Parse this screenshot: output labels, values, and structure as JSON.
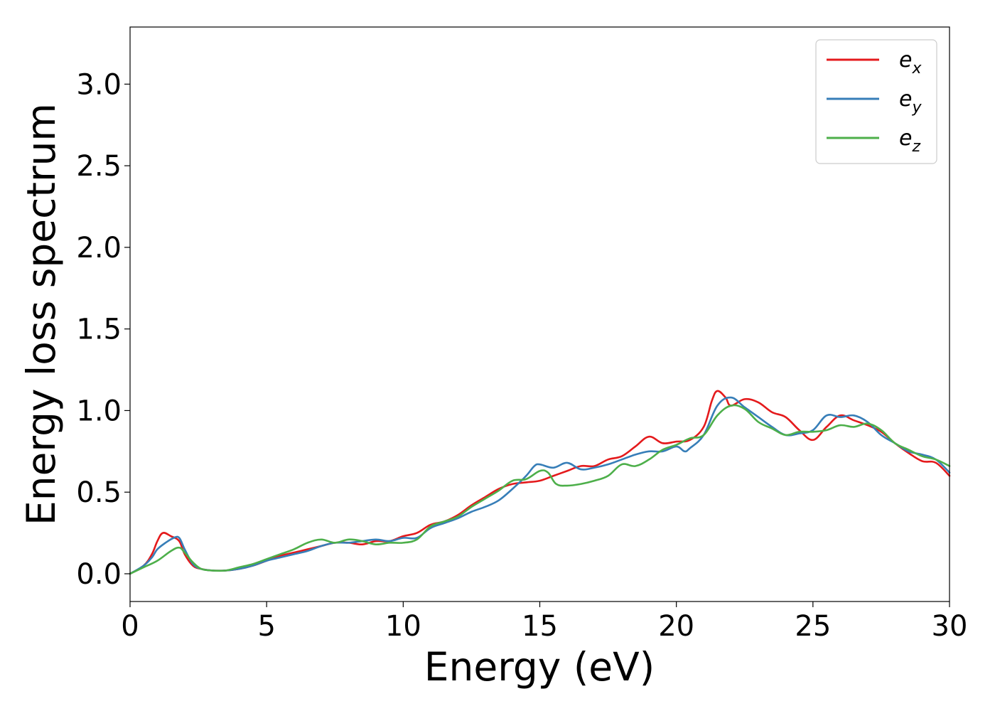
{
  "chart_data": {
    "type": "line",
    "xlabel": "Energy (eV)",
    "ylabel": "Energy loss spectrum",
    "xlim": [
      0,
      30
    ],
    "ylim": [
      -0.17,
      3.35
    ],
    "x_ticks": [
      0,
      5,
      10,
      15,
      20,
      25,
      30
    ],
    "x_tick_labels": [
      "0",
      "5",
      "10",
      "15",
      "20",
      "25",
      "30"
    ],
    "y_ticks": [
      0.0,
      0.5,
      1.0,
      1.5,
      2.0,
      2.5,
      3.0
    ],
    "y_tick_labels": [
      "0.0",
      "0.5",
      "1.0",
      "1.5",
      "2.0",
      "2.5",
      "3.0"
    ],
    "grid": false,
    "legend": "top-right",
    "series": [
      {
        "name": "e",
        "subscript": "x",
        "color": "#e41a1c",
        "x": [
          0,
          0.5,
          0.8,
          1.0,
          1.2,
          1.5,
          1.8,
          2.0,
          2.3,
          2.6,
          3.0,
          3.5,
          4.0,
          4.5,
          5.0,
          5.5,
          6.0,
          6.5,
          7.0,
          7.5,
          8.0,
          8.5,
          9.0,
          9.5,
          10.0,
          10.5,
          11.0,
          11.5,
          12.0,
          12.5,
          13.0,
          13.5,
          14.0,
          14.5,
          15.0,
          15.5,
          16.0,
          16.5,
          17.0,
          17.5,
          18.0,
          18.5,
          19.0,
          19.5,
          20.0,
          20.5,
          21.0,
          21.3,
          21.5,
          21.8,
          22.0,
          22.5,
          23.0,
          23.5,
          24.0,
          24.5,
          25.0,
          25.5,
          26.0,
          26.5,
          27.0,
          27.5,
          28.0,
          28.5,
          29.0,
          29.5,
          30.0
        ],
        "y": [
          0.0,
          0.05,
          0.12,
          0.2,
          0.25,
          0.23,
          0.2,
          0.12,
          0.05,
          0.03,
          0.02,
          0.02,
          0.03,
          0.05,
          0.08,
          0.11,
          0.13,
          0.15,
          0.17,
          0.19,
          0.19,
          0.18,
          0.2,
          0.2,
          0.23,
          0.25,
          0.3,
          0.32,
          0.36,
          0.42,
          0.47,
          0.52,
          0.55,
          0.56,
          0.57,
          0.6,
          0.63,
          0.66,
          0.66,
          0.7,
          0.72,
          0.78,
          0.84,
          0.8,
          0.81,
          0.82,
          0.9,
          1.06,
          1.12,
          1.08,
          1.03,
          1.07,
          1.05,
          0.99,
          0.96,
          0.88,
          0.82,
          0.9,
          0.97,
          0.94,
          0.91,
          0.87,
          0.8,
          0.74,
          0.69,
          0.68,
          0.6
        ]
      },
      {
        "name": "e",
        "subscript": "y",
        "color": "#377eb8",
        "x": [
          0,
          0.5,
          0.8,
          1.0,
          1.3,
          1.6,
          1.8,
          2.0,
          2.3,
          2.6,
          3.0,
          3.5,
          4.0,
          4.5,
          5.0,
          5.5,
          6.0,
          6.5,
          7.0,
          7.5,
          8.0,
          8.5,
          9.0,
          9.5,
          10.0,
          10.5,
          11.0,
          11.5,
          12.0,
          12.5,
          13.0,
          13.5,
          14.0,
          14.5,
          14.8,
          15.0,
          15.5,
          16.0,
          16.5,
          17.0,
          17.5,
          18.0,
          18.5,
          19.0,
          19.5,
          20.0,
          20.3,
          20.5,
          21.0,
          21.5,
          22.0,
          22.5,
          23.0,
          23.5,
          24.0,
          24.5,
          25.0,
          25.5,
          26.0,
          26.5,
          27.0,
          27.5,
          28.0,
          28.5,
          29.0,
          29.5,
          30.0
        ],
        "y": [
          0.0,
          0.05,
          0.1,
          0.15,
          0.19,
          0.22,
          0.22,
          0.15,
          0.06,
          0.03,
          0.02,
          0.02,
          0.03,
          0.05,
          0.08,
          0.1,
          0.12,
          0.14,
          0.17,
          0.19,
          0.19,
          0.2,
          0.21,
          0.2,
          0.22,
          0.22,
          0.28,
          0.31,
          0.34,
          0.38,
          0.41,
          0.45,
          0.52,
          0.6,
          0.66,
          0.67,
          0.65,
          0.68,
          0.64,
          0.65,
          0.67,
          0.7,
          0.73,
          0.75,
          0.75,
          0.78,
          0.75,
          0.77,
          0.85,
          1.03,
          1.08,
          1.02,
          0.96,
          0.9,
          0.85,
          0.86,
          0.88,
          0.97,
          0.96,
          0.97,
          0.93,
          0.85,
          0.8,
          0.75,
          0.73,
          0.7,
          0.62
        ]
      },
      {
        "name": "e",
        "subscript": "z",
        "color": "#4daf4a",
        "x": [
          0,
          0.5,
          1.0,
          1.5,
          1.8,
          2.0,
          2.3,
          2.6,
          3.0,
          3.5,
          4.0,
          4.5,
          5.0,
          5.5,
          6.0,
          6.5,
          7.0,
          7.5,
          8.0,
          8.5,
          9.0,
          9.5,
          10.0,
          10.5,
          11.0,
          11.5,
          12.0,
          12.5,
          13.0,
          13.5,
          14.0,
          14.5,
          15.0,
          15.3,
          15.6,
          16.0,
          16.5,
          17.0,
          17.5,
          18.0,
          18.5,
          19.0,
          19.5,
          20.0,
          20.5,
          21.0,
          21.5,
          22.0,
          22.5,
          23.0,
          23.5,
          24.0,
          24.5,
          25.0,
          25.5,
          26.0,
          26.5,
          27.0,
          27.5,
          28.0,
          28.5,
          29.0,
          29.5,
          30.0
        ],
        "y": [
          0.0,
          0.04,
          0.08,
          0.14,
          0.16,
          0.13,
          0.07,
          0.03,
          0.02,
          0.02,
          0.04,
          0.06,
          0.09,
          0.12,
          0.15,
          0.19,
          0.21,
          0.19,
          0.21,
          0.2,
          0.18,
          0.19,
          0.19,
          0.21,
          0.29,
          0.32,
          0.35,
          0.41,
          0.46,
          0.51,
          0.57,
          0.58,
          0.63,
          0.62,
          0.55,
          0.54,
          0.55,
          0.57,
          0.6,
          0.67,
          0.66,
          0.7,
          0.76,
          0.79,
          0.83,
          0.85,
          0.97,
          1.03,
          1.01,
          0.93,
          0.89,
          0.85,
          0.87,
          0.87,
          0.88,
          0.91,
          0.9,
          0.92,
          0.88,
          0.8,
          0.76,
          0.72,
          0.7,
          0.66
        ]
      }
    ]
  }
}
